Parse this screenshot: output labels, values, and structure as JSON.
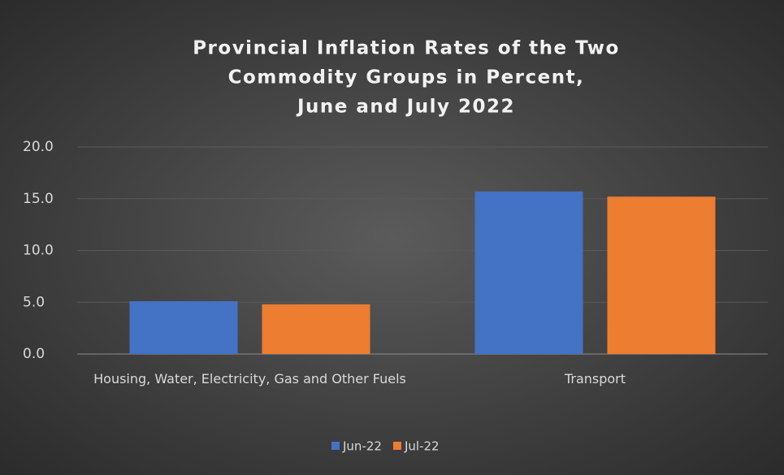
{
  "chart_data": {
    "type": "bar",
    "title": [
      "Provincial Inflation Rates of the Two",
      "Commodity Groups in Percent,",
      "June and July 2022"
    ],
    "categories": [
      "Housing, Water, Electricity, Gas and Other Fuels",
      "Transport"
    ],
    "series": [
      {
        "name": "Jun-22",
        "color": "#4472c4",
        "values": [
          5.1,
          15.7
        ]
      },
      {
        "name": "Jul-22",
        "color": "#ed7d31",
        "values": [
          4.8,
          15.2
        ]
      }
    ],
    "ylim": [
      0,
      20
    ],
    "yticks": [
      {
        "value": 0,
        "label": "0.0"
      },
      {
        "value": 5,
        "label": "5.0"
      },
      {
        "value": 10,
        "label": "10.0"
      },
      {
        "value": 15,
        "label": "15.0"
      },
      {
        "value": 20,
        "label": "20.0"
      }
    ],
    "grid": true,
    "legend": "bottom"
  }
}
